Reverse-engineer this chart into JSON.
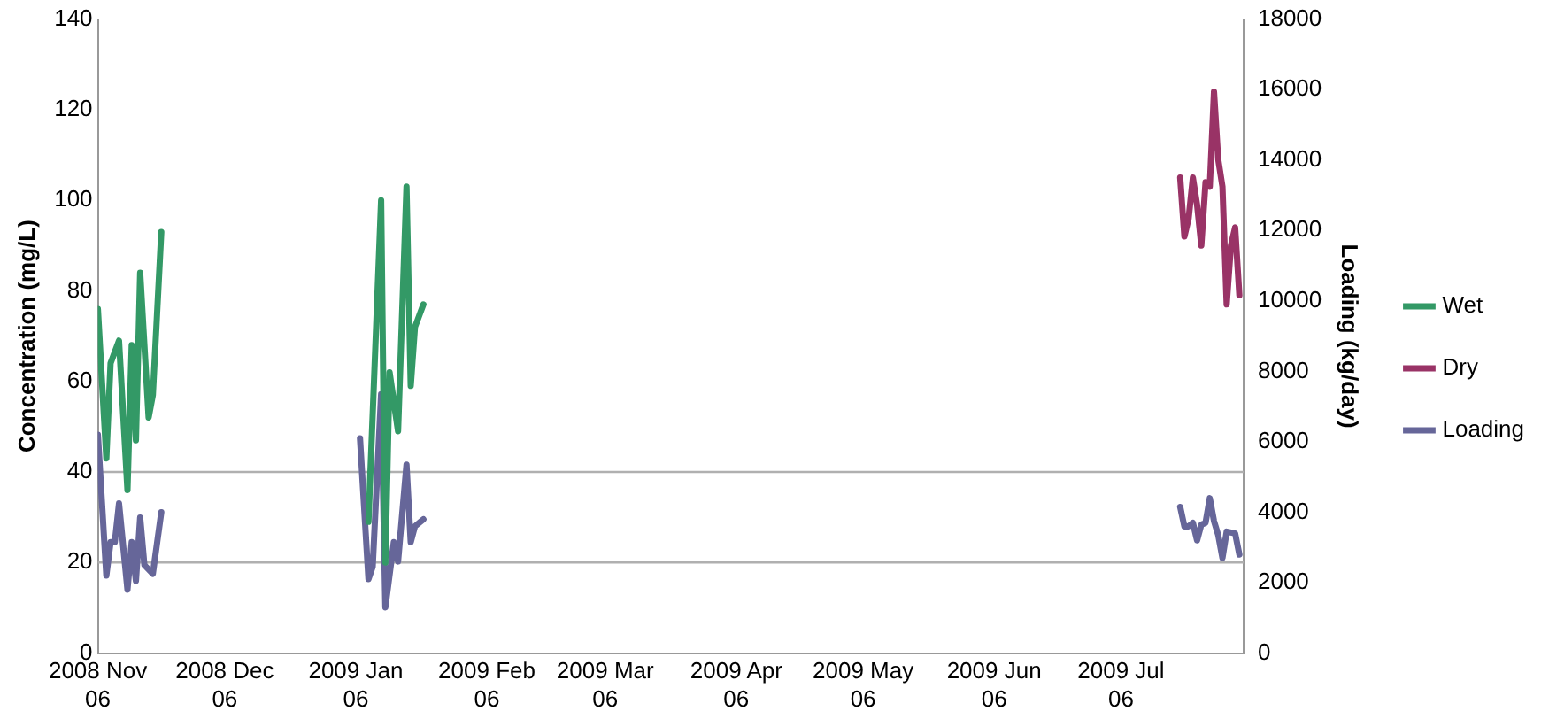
{
  "chart_data": {
    "type": "line",
    "xlabel": null,
    "ylabel": "Concentration (mg/L)",
    "y2label": "Loading (kg/day)",
    "xlim": [
      "2008-11-06",
      "2009-08-04"
    ],
    "xticks": [
      {
        "value": "2008-11-06",
        "label": "2008 Nov 06"
      },
      {
        "value": "2008-12-06",
        "label": "2008 Dec 06"
      },
      {
        "value": "2009-01-06",
        "label": "2009 Jan 06"
      },
      {
        "value": "2009-02-06",
        "label": "2009 Feb 06"
      },
      {
        "value": "2009-03-06",
        "label": "2009 Mar 06"
      },
      {
        "value": "2009-04-06",
        "label": "2009 Apr 06"
      },
      {
        "value": "2009-05-06",
        "label": "2009 May 06"
      },
      {
        "value": "2009-06-06",
        "label": "2009 Jun 06"
      },
      {
        "value": "2009-07-06",
        "label": "2009 Jul 06"
      }
    ],
    "ylim": [
      0,
      140
    ],
    "yticks": [
      0,
      20,
      40,
      60,
      80,
      100,
      120,
      140
    ],
    "y2lim": [
      0,
      18000
    ],
    "y2ticks": [
      0,
      2000,
      4000,
      6000,
      8000,
      10000,
      12000,
      14000,
      16000,
      18000
    ],
    "grid": false,
    "legend": "right",
    "marker": "none",
    "line_style": "solid",
    "ref_lines": [
      {
        "axis": "y",
        "value": 20,
        "color": "#b0b0b0"
      },
      {
        "axis": "y",
        "value": 40,
        "color": "#b0b0b0"
      }
    ],
    "series": [
      {
        "name": "Wet",
        "color": "#339966",
        "x": [
          "2008-11-06",
          "2008-11-08",
          "2008-11-09",
          "2008-11-11",
          "2008-11-13",
          "2008-11-14",
          "2008-11-15",
          "2008-11-16",
          "2008-11-18",
          "2008-11-19",
          "2008-11-21",
          "2008-12-15",
          "2009-01-09",
          "2009-01-12",
          "2009-01-13",
          "2009-01-14",
          "2009-01-16",
          "2009-01-18",
          "2009-01-19",
          "2009-01-20",
          "2009-01-22"
        ],
        "values": [
          76,
          43,
          64,
          69,
          36,
          68,
          47,
          84,
          52,
          57,
          93,
          null,
          29,
          100,
          20,
          62,
          49,
          103,
          59,
          72,
          77
        ]
      },
      {
        "name": "Dry",
        "color": "#993366",
        "x": [
          "2009-07-20",
          "2009-07-21",
          "2009-07-22",
          "2009-07-23",
          "2009-07-24",
          "2009-07-25",
          "2009-07-26",
          "2009-07-27",
          "2009-07-28",
          "2009-07-29",
          "2009-07-30",
          "2009-07-31",
          "2009-08-01",
          "2009-08-02",
          "2009-08-03"
        ],
        "values": [
          105,
          92,
          96,
          105,
          99,
          90,
          104,
          103,
          124,
          109,
          103,
          77,
          90,
          94,
          79
        ]
      },
      {
        "name": "Loading",
        "color": "#666699",
        "axis": "y2",
        "x": [
          "2008-11-06",
          "2008-11-08",
          "2008-11-09",
          "2008-11-10",
          "2008-11-11",
          "2008-11-13",
          "2008-11-14",
          "2008-11-15",
          "2008-11-16",
          "2008-11-17",
          "2008-11-19",
          "2008-11-21",
          "2008-12-15",
          "2009-01-07",
          "2009-01-09",
          "2009-01-10",
          "2009-01-12",
          "2009-01-13",
          "2009-01-15",
          "2009-01-16",
          "2009-01-18",
          "2009-01-19",
          "2009-01-20",
          "2009-01-22",
          "2009-04-15",
          "2009-07-20",
          "2009-07-21",
          "2009-07-22",
          "2009-07-23",
          "2009-07-24",
          "2009-07-25",
          "2009-07-26",
          "2009-07-27",
          "2009-07-28",
          "2009-07-29",
          "2009-07-30",
          "2009-07-31",
          "2009-08-02",
          "2009-08-03"
        ],
        "values": [
          6200,
          2200,
          3150,
          3150,
          4250,
          1800,
          3150,
          2050,
          3850,
          2500,
          2250,
          4000,
          null,
          6100,
          2100,
          2450,
          7350,
          1300,
          3150,
          2600,
          5350,
          3150,
          3600,
          3800,
          null,
          4150,
          3600,
          3600,
          3700,
          3200,
          3650,
          3700,
          4400,
          3750,
          3350,
          2700,
          3450,
          3400,
          2800
        ]
      }
    ]
  }
}
